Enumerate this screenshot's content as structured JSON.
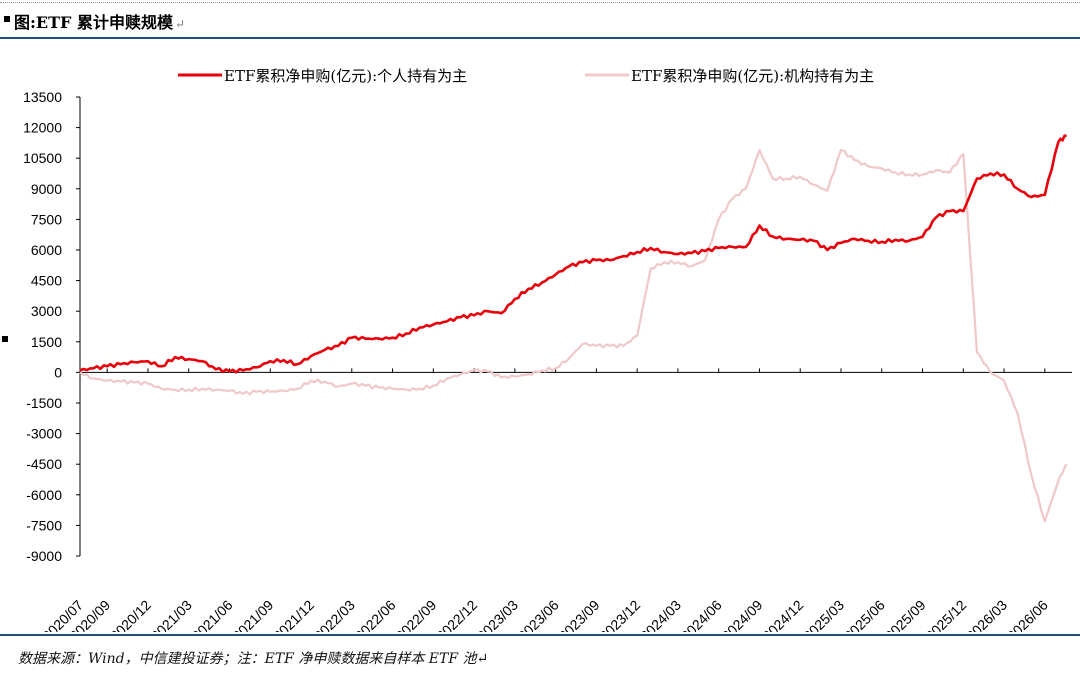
{
  "header": {
    "title": "图:ETF 累计申赎规模",
    "return_mark": "↵"
  },
  "footer": {
    "source": "数据来源：Wind，中信建投证券；注：ETF 净申赎数据来自样本 ETF 池↵"
  },
  "colors": {
    "series_individual": "#e8000b",
    "series_institutional": "#f0c8c8",
    "rule": "#1f4e79",
    "axis": "#000000"
  },
  "chart_data": {
    "type": "line",
    "title": "",
    "xlabel": "",
    "ylabel": "",
    "ylim": [
      -9000,
      13500
    ],
    "yticks": [
      13500,
      12000,
      10500,
      9000,
      7500,
      6000,
      4500,
      3000,
      1500,
      0,
      -1500,
      -3000,
      -4500,
      -6000,
      -7500,
      -9000
    ],
    "xticks": [
      "2020/07",
      "2020/09",
      "2020/12",
      "2021/03",
      "2021/06",
      "2021/09",
      "2021/12",
      "2022/03",
      "2022/06",
      "2022/09",
      "2022/12",
      "2023/03",
      "2023/06",
      "2023/09",
      "2023/12",
      "2024/03",
      "2024/06",
      "2024/09",
      "2024/12",
      "2025/03",
      "2025/06",
      "2025/09",
      "2025/12",
      "2026/03",
      "2026/06"
    ],
    "grid": false,
    "legend_position": "top",
    "series": [
      {
        "name": "ETF累积净申购(亿元):个人持有为主",
        "color": "#e8000b",
        "points": [
          [
            "2020/07",
            100
          ],
          [
            "2020/08",
            200
          ],
          [
            "2020/09",
            300
          ],
          [
            "2020/10",
            400
          ],
          [
            "2020/11",
            500
          ],
          [
            "2020/12",
            550
          ],
          [
            "2021/01",
            300
          ],
          [
            "2021/02",
            750
          ],
          [
            "2021/03",
            650
          ],
          [
            "2021/04",
            550
          ],
          [
            "2021/05",
            150
          ],
          [
            "2021/06",
            50
          ],
          [
            "2021/07",
            100
          ],
          [
            "2021/08",
            250
          ],
          [
            "2021/09",
            550
          ],
          [
            "2021/10",
            600
          ],
          [
            "2021/11",
            400
          ],
          [
            "2021/12",
            800
          ],
          [
            "2022/01",
            1100
          ],
          [
            "2022/02",
            1300
          ],
          [
            "2022/03",
            1700
          ],
          [
            "2022/04",
            1650
          ],
          [
            "2022/05",
            1650
          ],
          [
            "2022/06",
            1700
          ],
          [
            "2022/07",
            1900
          ],
          [
            "2022/08",
            2200
          ],
          [
            "2022/09",
            2350
          ],
          [
            "2022/10",
            2500
          ],
          [
            "2022/11",
            2700
          ],
          [
            "2022/12",
            2800
          ],
          [
            "2023/01",
            3000
          ],
          [
            "2023/02",
            2900
          ],
          [
            "2023/03",
            3600
          ],
          [
            "2023/04",
            4100
          ],
          [
            "2023/05",
            4400
          ],
          [
            "2023/06",
            4800
          ],
          [
            "2023/07",
            5200
          ],
          [
            "2023/08",
            5400
          ],
          [
            "2023/09",
            5500
          ],
          [
            "2023/10",
            5500
          ],
          [
            "2023/11",
            5700
          ],
          [
            "2023/12",
            5900
          ],
          [
            "2024/01",
            6100
          ],
          [
            "2024/02",
            5900
          ],
          [
            "2024/03",
            5800
          ],
          [
            "2024/04",
            5850
          ],
          [
            "2024/05",
            5950
          ],
          [
            "2024/06",
            6100
          ],
          [
            "2024/07",
            6150
          ],
          [
            "2024/08",
            6150
          ],
          [
            "2024/09",
            7200
          ],
          [
            "2024/10",
            6650
          ],
          [
            "2024/11",
            6550
          ],
          [
            "2024/12",
            6500
          ],
          [
            "2025/01",
            6450
          ],
          [
            "2025/02",
            6000
          ],
          [
            "2025/03",
            6350
          ],
          [
            "2025/04",
            6550
          ],
          [
            "2025/05",
            6450
          ],
          [
            "2025/06",
            6400
          ],
          [
            "2025/07",
            6500
          ],
          [
            "2025/08",
            6450
          ],
          [
            "2025/09",
            6650
          ],
          [
            "2025/10",
            7600
          ],
          [
            "2025/11",
            7900
          ],
          [
            "2025/12",
            7900
          ],
          [
            "2026/01",
            9500
          ],
          [
            "2026/02",
            9750
          ],
          [
            "2026/03",
            9700
          ],
          [
            "2026/04",
            9000
          ],
          [
            "2026/05",
            8600
          ],
          [
            "2026/06",
            8700
          ],
          [
            "2026/07",
            11300
          ],
          [
            "2026/07b",
            11600
          ]
        ]
      },
      {
        "name": "ETF累积净申购(亿元):机构持有为主",
        "color": "#f0c8c8",
        "points": [
          [
            "2020/07",
            0
          ],
          [
            "2020/08",
            -300
          ],
          [
            "2020/09",
            -400
          ],
          [
            "2020/10",
            -450
          ],
          [
            "2020/11",
            -500
          ],
          [
            "2020/12",
            -550
          ],
          [
            "2021/01",
            -800
          ],
          [
            "2021/02",
            -850
          ],
          [
            "2021/03",
            -850
          ],
          [
            "2021/04",
            -800
          ],
          [
            "2021/05",
            -850
          ],
          [
            "2021/06",
            -900
          ],
          [
            "2021/07",
            -1050
          ],
          [
            "2021/08",
            -950
          ],
          [
            "2021/09",
            -950
          ],
          [
            "2021/10",
            -900
          ],
          [
            "2021/11",
            -800
          ],
          [
            "2021/12",
            -400
          ],
          [
            "2022/01",
            -450
          ],
          [
            "2022/02",
            -700
          ],
          [
            "2022/03",
            -550
          ],
          [
            "2022/04",
            -650
          ],
          [
            "2022/05",
            -750
          ],
          [
            "2022/06",
            -800
          ],
          [
            "2022/07",
            -850
          ],
          [
            "2022/08",
            -800
          ],
          [
            "2022/09",
            -650
          ],
          [
            "2022/10",
            -300
          ],
          [
            "2022/11",
            -100
          ],
          [
            "2022/12",
            100
          ],
          [
            "2023/01",
            50
          ],
          [
            "2023/02",
            -250
          ],
          [
            "2023/03",
            -200
          ],
          [
            "2023/04",
            -100
          ],
          [
            "2023/05",
            100
          ],
          [
            "2023/06",
            200
          ],
          [
            "2023/07",
            700
          ],
          [
            "2023/08",
            1400
          ],
          [
            "2023/09",
            1300
          ],
          [
            "2023/10",
            1300
          ],
          [
            "2023/11",
            1300
          ],
          [
            "2023/12",
            1800
          ],
          [
            "2024/01",
            5100
          ],
          [
            "2024/02",
            5400
          ],
          [
            "2024/03",
            5400
          ],
          [
            "2024/04",
            5200
          ],
          [
            "2024/05",
            5500
          ],
          [
            "2024/06",
            7500
          ],
          [
            "2024/07",
            8500
          ],
          [
            "2024/08",
            9000
          ],
          [
            "2024/09",
            10900
          ],
          [
            "2024/10",
            9500
          ],
          [
            "2024/11",
            9500
          ],
          [
            "2024/12",
            9600
          ],
          [
            "2025/01",
            9200
          ],
          [
            "2025/02",
            8900
          ],
          [
            "2025/03",
            10900
          ],
          [
            "2025/04",
            10400
          ],
          [
            "2025/05",
            10100
          ],
          [
            "2025/06",
            10000
          ],
          [
            "2025/07",
            9800
          ],
          [
            "2025/08",
            9700
          ],
          [
            "2025/09",
            9700
          ],
          [
            "2025/10",
            9900
          ],
          [
            "2025/11",
            9800
          ],
          [
            "2025/12",
            10700
          ],
          [
            "2026/01",
            1000
          ],
          [
            "2026/02",
            0
          ],
          [
            "2026/03",
            -400
          ],
          [
            "2026/04",
            -2000
          ],
          [
            "2026/05",
            -5000
          ],
          [
            "2026/06",
            -7300
          ],
          [
            "2026/07",
            -5300
          ],
          [
            "2026/07b",
            -4500
          ]
        ]
      }
    ]
  }
}
